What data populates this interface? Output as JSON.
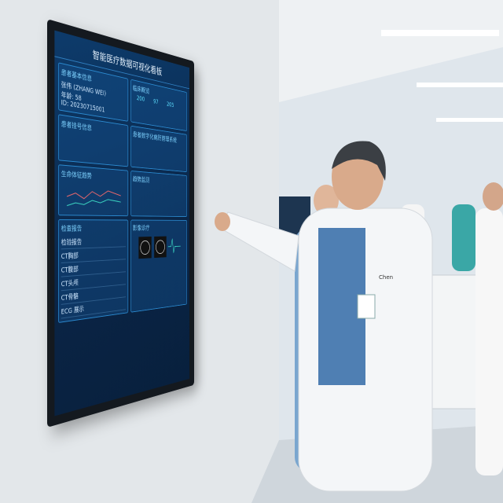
{
  "screen": {
    "title": "智能医疗数据可视化看板",
    "patient_panel": {
      "heading": "患者基本信息",
      "name": "张伟 (ZHANG WEI)",
      "age": "年龄: 58",
      "id": "ID: 20230715001"
    },
    "registration_panel": {
      "heading": "患者挂号信息"
    },
    "vitals_panel": {
      "heading": "生命体征趋势"
    },
    "reports_panel": {
      "heading": "检查报告",
      "rows": [
        "检验报告",
        "CT胸部",
        "CT腹部",
        "CT头颅",
        "CT骨骼",
        "ECG 展示"
      ]
    },
    "clinical_panel": {
      "heading": "临床概览",
      "stats": [
        "200",
        "97",
        "205"
      ]
    },
    "records_panel": {
      "heading": "患者数字化病历管理系统"
    },
    "imaging_panel": {
      "heading": "影像诊疗"
    },
    "trend_panel": {
      "heading": "趋势监测"
    }
  },
  "badge": {
    "name": "Chen"
  }
}
